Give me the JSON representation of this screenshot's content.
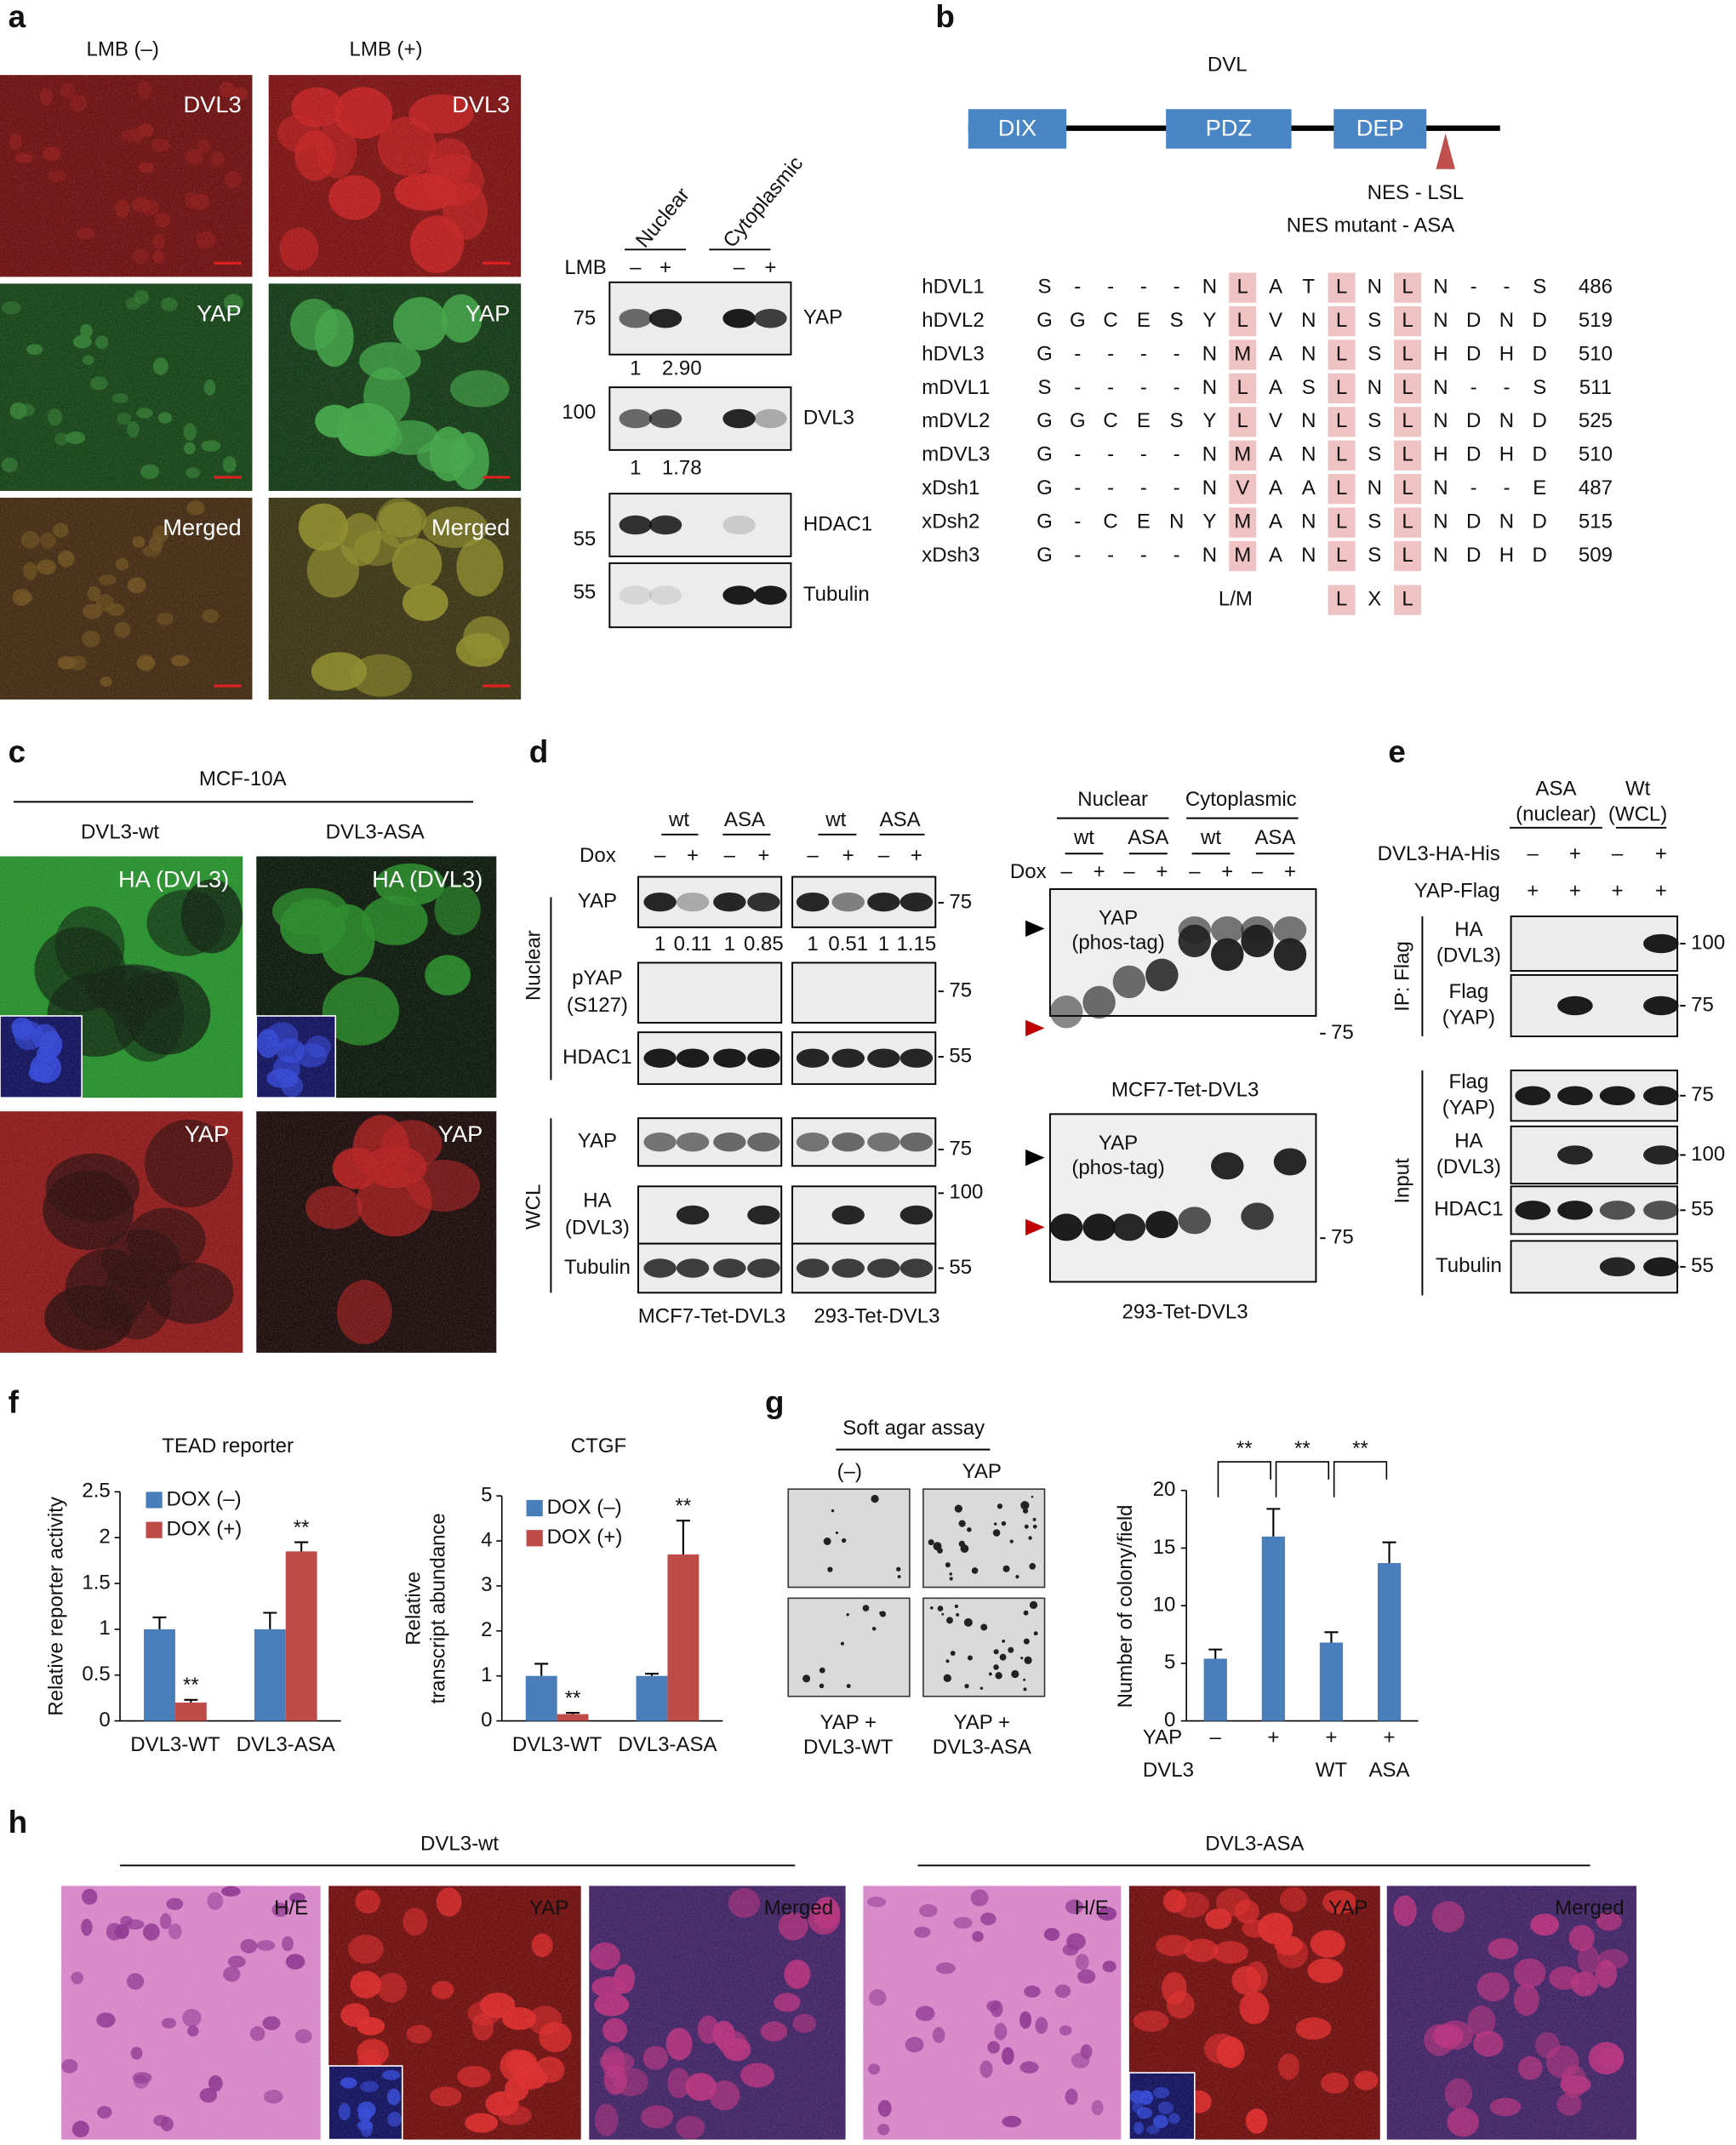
{
  "a": {
    "label": "a",
    "columns": [
      "LMB (–)",
      "LMB (+)"
    ],
    "images": [
      [
        "DVL3",
        "DVL3"
      ],
      [
        "YAP",
        "YAP"
      ],
      [
        "Merged",
        "Merged"
      ]
    ],
    "blot": {
      "groups": [
        "Nuclear",
        "Cytoplasmic"
      ],
      "treatment": "LMB",
      "signs": [
        "–",
        "+",
        "–",
        "+"
      ],
      "rows": [
        {
          "name": "YAP",
          "mw": "75"
        },
        {
          "name": "DVL3",
          "mw": "100"
        },
        {
          "name": "HDAC1",
          "mw": "55"
        },
        {
          "name": "Tubulin",
          "mw": "55"
        }
      ],
      "quant": [
        [
          "1",
          "2.90"
        ],
        [
          "1",
          "1.78"
        ]
      ]
    }
  },
  "b": {
    "label": "b",
    "protein": "DVL",
    "domains": [
      "DIX",
      "PDZ",
      "DEP"
    ],
    "nes": "NES - LSL",
    "nes_mutant": "NES mutant - ASA",
    "alignment": [
      {
        "name": "hDVL1",
        "residues": [
          "S",
          "-",
          "-",
          "-",
          "-",
          "N",
          "L",
          "A",
          "T",
          "L",
          "N",
          "L",
          "N",
          "-",
          "-",
          "S"
        ],
        "end": "486"
      },
      {
        "name": "hDVL2",
        "residues": [
          "G",
          "G",
          "C",
          "E",
          "S",
          "Y",
          "L",
          "V",
          "N",
          "L",
          "S",
          "L",
          "N",
          "D",
          "N",
          "D"
        ],
        "end": "519"
      },
      {
        "name": "hDVL3",
        "residues": [
          "G",
          "-",
          "-",
          "-",
          "-",
          "N",
          "M",
          "A",
          "N",
          "L",
          "S",
          "L",
          "H",
          "D",
          "H",
          "D"
        ],
        "end": "510"
      },
      {
        "name": "mDVL1",
        "residues": [
          "S",
          "-",
          "-",
          "-",
          "-",
          "N",
          "L",
          "A",
          "S",
          "L",
          "N",
          "L",
          "N",
          "-",
          "-",
          "S"
        ],
        "end": "511"
      },
      {
        "name": "mDVL2",
        "residues": [
          "G",
          "G",
          "C",
          "E",
          "S",
          "Y",
          "L",
          "V",
          "N",
          "L",
          "S",
          "L",
          "N",
          "D",
          "N",
          "D"
        ],
        "end": "525"
      },
      {
        "name": "mDVL3",
        "residues": [
          "G",
          "-",
          "-",
          "-",
          "-",
          "N",
          "M",
          "A",
          "N",
          "L",
          "S",
          "L",
          "H",
          "D",
          "H",
          "D"
        ],
        "end": "510"
      },
      {
        "name": "xDsh1",
        "residues": [
          "G",
          "-",
          "-",
          "-",
          "-",
          "N",
          "V",
          "A",
          "A",
          "L",
          "N",
          "L",
          "N",
          "-",
          "-",
          "E"
        ],
        "end": "487"
      },
      {
        "name": "xDsh2",
        "residues": [
          "G",
          "-",
          "C",
          "E",
          "N",
          "Y",
          "M",
          "A",
          "N",
          "L",
          "S",
          "L",
          "N",
          "D",
          "N",
          "D"
        ],
        "end": "515"
      },
      {
        "name": "xDsh3",
        "residues": [
          "G",
          "-",
          "-",
          "-",
          "-",
          "N",
          "M",
          "A",
          "N",
          "L",
          "S",
          "L",
          "N",
          "D",
          "H",
          "D"
        ],
        "end": "509"
      }
    ],
    "consensus": [
      "L/M",
      "L",
      "X",
      "L"
    ]
  },
  "c": {
    "label": "c",
    "cell_line": "MCF-10A",
    "columns": [
      "DVL3-wt",
      "DVL3-ASA"
    ],
    "images": [
      [
        "HA (DVL3)",
        "HA (DVL3)"
      ],
      [
        "YAP",
        "YAP"
      ]
    ]
  },
  "d": {
    "label": "d",
    "left": {
      "groups": [
        "wt",
        "ASA",
        "wt",
        "ASA"
      ],
      "treatment": "Dox",
      "signs": [
        "–",
        "+",
        "–",
        "+",
        "–",
        "+",
        "–",
        "+"
      ],
      "sections": [
        "Nuclear",
        "WCL"
      ],
      "rows": [
        {
          "name": [
            "YAP"
          ],
          "mw": "75"
        },
        {
          "name": [
            "pYAP",
            "(S127)"
          ],
          "mw": "75"
        },
        {
          "name": [
            "HDAC1"
          ],
          "mw": "55"
        },
        {
          "name": [
            "YAP"
          ],
          "mw": "75"
        },
        {
          "name": [
            "HA",
            "(DVL3)"
          ],
          "mw": "100"
        },
        {
          "name": [
            "Tubulin"
          ],
          "mw": "55"
        }
      ],
      "quant": [
        "1",
        "0.11",
        "1",
        "0.85",
        "1",
        "0.51",
        "1",
        "1.15"
      ],
      "cell_lines": [
        "MCF7-Tet-DVL3",
        "293-Tet-DVL3"
      ]
    },
    "right": {
      "groups": [
        "Nuclear",
        "Cytoplasmic"
      ],
      "subgroups": [
        "wt",
        "ASA",
        "wt",
        "ASA"
      ],
      "treatment": "Dox",
      "signs": [
        "–",
        "+",
        "–",
        "+",
        "–",
        "+",
        "–",
        "+"
      ],
      "blots": [
        {
          "label": [
            "YAP",
            "(phos-tag)"
          ],
          "mw": "75",
          "cell_line": "MCF7-Tet-DVL3"
        },
        {
          "label": [
            "YAP",
            "(phos-tag)"
          ],
          "mw": "75",
          "cell_line": "293-Tet-DVL3"
        }
      ]
    }
  },
  "e": {
    "label": "e",
    "groups": [
      [
        "ASA",
        "(nuclear)"
      ],
      [
        "Wt",
        "(WCL)"
      ]
    ],
    "conditions": [
      {
        "name": "DVL3-HA-His",
        "signs": [
          "–",
          "+",
          "–",
          "+"
        ]
      },
      {
        "name": "YAP-Flag",
        "signs": [
          "+",
          "+",
          "+",
          "+"
        ]
      }
    ],
    "sections": [
      "IP: Flag",
      "Input"
    ],
    "rows": [
      {
        "name": [
          "HA",
          "(DVL3)"
        ],
        "mw": "100"
      },
      {
        "name": [
          "Flag",
          "(YAP)"
        ],
        "mw": "75"
      },
      {
        "name": [
          "Flag",
          "(YAP)"
        ],
        "mw": "75"
      },
      {
        "name": [
          "HA",
          "(DVL3)"
        ],
        "mw": "100"
      },
      {
        "name": [
          "HDAC1"
        ],
        "mw": "55"
      },
      {
        "name": [
          "Tubulin"
        ],
        "mw": "55"
      }
    ]
  },
  "f": {
    "label": "f",
    "charts": [
      {
        "type": "bar",
        "title": "TEAD reporter",
        "y_label": [
          "Relative reporter activity"
        ],
        "categories": [
          "DVL3-WT",
          "DVL3-ASA"
        ],
        "ylim": [
          0,
          2.5
        ],
        "yticks": [
          0,
          0.5,
          1,
          1.5,
          2,
          2.5
        ],
        "series": [
          {
            "name": "DOX (–)",
            "color": "#4a7ebb",
            "values": [
              1.0,
              1.0
            ],
            "errors": [
              0.13,
              0.18
            ]
          },
          {
            "name": "DOX (+)",
            "color": "#be4b48",
            "values": [
              0.2,
              1.85
            ],
            "errors": [
              0.03,
              0.1
            ],
            "annotations": [
              "**",
              "**"
            ]
          }
        ]
      },
      {
        "type": "bar",
        "title": "CTGF",
        "y_label": [
          "Relative",
          "transcript abundance"
        ],
        "categories": [
          "DVL3-WT",
          "DVL3-ASA"
        ],
        "ylim": [
          0,
          5
        ],
        "yticks": [
          0,
          1,
          2,
          3,
          4,
          5
        ],
        "series": [
          {
            "name": "DOX (–)",
            "color": "#4a7ebb",
            "values": [
              1.0,
              1.0
            ],
            "errors": [
              0.27,
              0.05
            ]
          },
          {
            "name": "DOX (+)",
            "color": "#be4b48",
            "values": [
              0.15,
              3.7
            ],
            "errors": [
              0.03,
              0.75
            ],
            "annotations": [
              "**",
              "**"
            ]
          }
        ]
      }
    ]
  },
  "g": {
    "label": "g",
    "assay": "Soft agar assay",
    "columns": [
      "(–)",
      "YAP"
    ],
    "bottom_labels": [
      [
        "YAP +",
        "DVL3-WT"
      ],
      [
        "YAP +",
        "DVL3-ASA"
      ]
    ],
    "chart": {
      "type": "bar",
      "y_label": "Number of colony/field",
      "ylim": [
        0,
        20
      ],
      "yticks": [
        0,
        5,
        10,
        15,
        20
      ],
      "color": "#4a7ebb",
      "values": [
        5.4,
        16,
        6.8,
        13.7
      ],
      "errors": [
        0.8,
        2.4,
        0.9,
        1.8
      ],
      "significance": [
        "**",
        "**",
        "**"
      ],
      "row_labels": [
        "YAP",
        "DVL3"
      ],
      "yap": [
        "–",
        "+",
        "+",
        "+"
      ],
      "dvl3": [
        null,
        null,
        "WT",
        "ASA"
      ]
    }
  },
  "h": {
    "label": "h",
    "groups": [
      "DVL3-wt",
      "DVL3-ASA"
    ],
    "images": [
      [
        "H/E",
        "YAP",
        "Merged"
      ],
      [
        "H/E",
        "YAP",
        "Merged"
      ]
    ]
  }
}
